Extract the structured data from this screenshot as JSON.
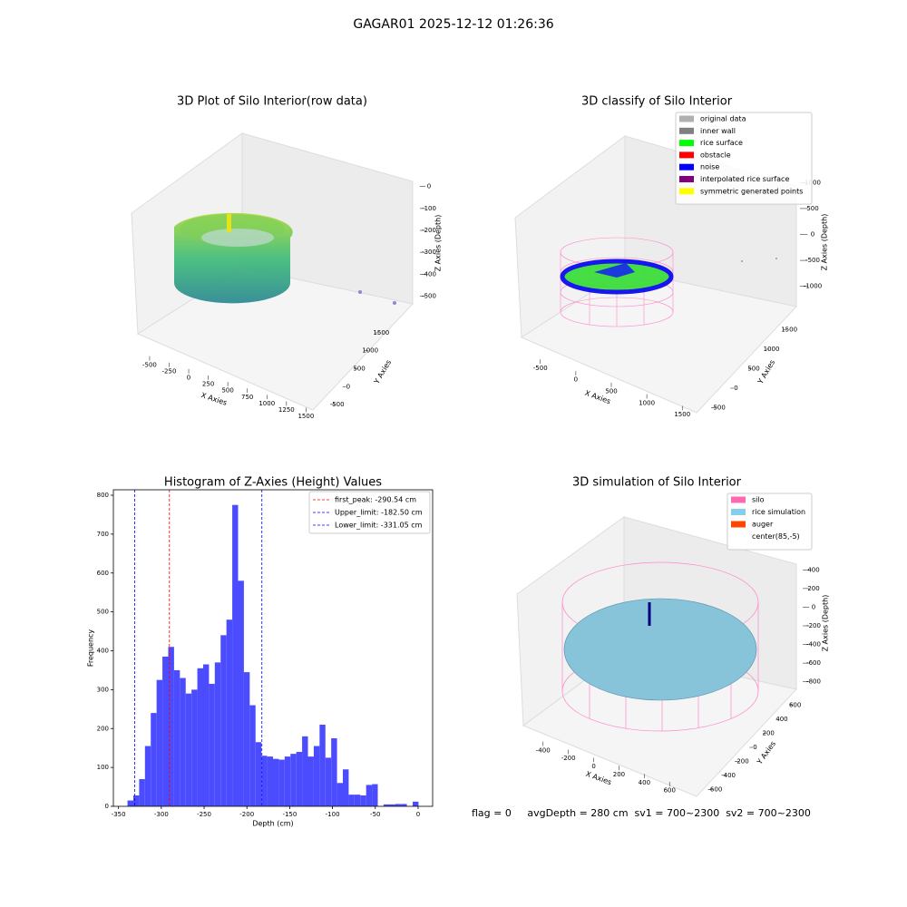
{
  "title": "GAGAR01 2025-12-12 01:26:36",
  "footer": "flag = 0     avgDepth = 280 cm  sv1 = 700~2300  sv2 = 700~2300",
  "chart_data": [
    {
      "type": "scatter3d",
      "title": "3D Plot of Silo Interior(row data)",
      "x_label": "X Axies",
      "y_label": "Y Axies",
      "z_label": "Z Axies (Depth)",
      "xlim": [
        -650,
        1600
      ],
      "xticks": [
        -500,
        -250,
        0,
        250,
        500,
        750,
        1000,
        1250,
        1500
      ],
      "ylim": [
        -650,
        1650
      ],
      "yticks": [
        -500,
        0,
        500,
        1000,
        1500
      ],
      "zlim": [
        -560,
        40
      ],
      "zticks": [
        0,
        -100,
        -200,
        -300,
        -400,
        -500
      ]
    },
    {
      "type": "scatter3d",
      "title": "3D classify of Silo Interior",
      "x_label": "X Axies",
      "y_label": "Y Axies",
      "z_label": "Z Axies (Depth)",
      "xlim": [
        -650,
        1650
      ],
      "xticks": [
        -500,
        0,
        500,
        1000,
        1500
      ],
      "ylim": [
        -650,
        1650
      ],
      "yticks": [
        -500,
        0,
        500,
        1000,
        1500
      ],
      "zlim": [
        -1250,
        1250
      ],
      "zticks": [
        1000,
        500,
        0,
        -500,
        -1000
      ],
      "series": [
        {
          "name": "original data",
          "color": "#b0b0b0"
        },
        {
          "name": "inner wall",
          "color": "#808080"
        },
        {
          "name": "rice surface",
          "color": "#00ff00"
        },
        {
          "name": "obstacle",
          "color": "#ff0000"
        },
        {
          "name": "noise",
          "color": "#0000ff"
        },
        {
          "name": "interpolated rice surface",
          "color": "#800080"
        },
        {
          "name": "symmetric generated points",
          "color": "#ffff00"
        }
      ]
    },
    {
      "type": "histogram",
      "title": "Histogram of Z-Axies (Height) Values",
      "x_label": "Depth (cm)",
      "y_label": "Frequency",
      "color": "#4c4cff",
      "bins": [
        -339.5,
        -332.7,
        -325.9,
        -319.1,
        -312.3,
        -305.5,
        -298.7,
        -291.9,
        -285.1,
        -278.3,
        -271.5,
        -264.7,
        -257.9,
        -251.1,
        -244.3,
        -237.5,
        -230.7,
        -223.9,
        -217.1,
        -210.3,
        -203.5,
        -196.7,
        -189.9,
        -183.1,
        -176.3,
        -169.5,
        -162.7,
        -155.9,
        -149.1,
        -142.3,
        -135.5,
        -128.7,
        -121.9,
        -115.1,
        -108.3,
        -101.5,
        -94.7,
        -87.9,
        -81.1,
        -74.3,
        -67.5,
        -60.7,
        -53.9,
        -47.1,
        -40.3,
        -33.5,
        -26.7,
        -19.9,
        -13.1,
        -6.3,
        0.5
      ],
      "values": [
        15,
        28,
        70,
        155,
        240,
        325,
        385,
        410,
        350,
        330,
        290,
        300,
        355,
        365,
        315,
        370,
        440,
        480,
        775,
        580,
        345,
        260,
        165,
        130,
        128,
        122,
        120,
        128,
        135,
        140,
        180,
        128,
        155,
        210,
        125,
        175,
        60,
        95,
        30,
        30,
        28,
        55,
        57,
        0,
        5,
        5,
        6,
        6,
        0,
        12
      ],
      "xlim": [
        -356,
        17
      ],
      "xticks": [
        -350,
        -300,
        -250,
        -200,
        -150,
        -100,
        -50,
        0
      ],
      "ylim": [
        0,
        814
      ],
      "yticks": [
        0,
        100,
        200,
        300,
        400,
        500,
        600,
        700,
        800
      ],
      "annotations": [
        {
          "value": -290.54,
          "label": "first_peak: -290.54 cm",
          "color": "#ff0000"
        },
        {
          "value": -182.5,
          "label": "Upper_limit: -182.50 cm",
          "color": "#0000ff"
        },
        {
          "value": -331.05,
          "label": "Lower_limit: -331.05 cm",
          "color": "#0000ff"
        }
      ]
    },
    {
      "type": "surface3d",
      "title": "3D simulation of Silo Interior",
      "x_label": "X Axies",
      "y_label": "Y Axies",
      "z_label": "Z Axies (Depth)",
      "xlim": [
        -520,
        720
      ],
      "xticks": [
        -400,
        -200,
        0,
        200,
        400,
        600
      ],
      "ylim": [
        -700,
        700
      ],
      "yticks": [
        -600,
        -400,
        -200,
        0,
        200,
        400,
        600
      ],
      "zlim": [
        -900,
        500
      ],
      "zticks": [
        400,
        200,
        0,
        -200,
        -400,
        -600,
        -800
      ],
      "series": [
        {
          "name": "silo",
          "color": "#ff69b4"
        },
        {
          "name": "rice simulation",
          "color": "#87ceeb"
        },
        {
          "name": "auger",
          "color": "#ff4500"
        },
        {
          "name": "center(85,-5)"
        }
      ]
    }
  ]
}
